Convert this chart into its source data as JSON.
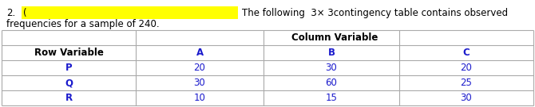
{
  "title_number": "2.",
  "title_text": "The following  3× 3contingency table contains observed",
  "subtitle_text": "frequencies for a sample of 240.",
  "col_header_label": "Column Variable",
  "row_header_label": "Row Variable",
  "col_headers": [
    "A",
    "B",
    "C"
  ],
  "row_headers": [
    "P",
    "Q",
    "R"
  ],
  "table_data": [
    [
      20,
      30,
      20
    ],
    [
      30,
      60,
      25
    ],
    [
      10,
      15,
      30
    ]
  ],
  "text_color_blue": "#1a1acc",
  "text_color_black": "#000000",
  "bg_color": "#ffffff",
  "yellow_box_color": "#ffff00",
  "line_color": "#aaaaaa",
  "font_size": 8.5,
  "bold_font_size": 8.5,
  "fig_width": 6.7,
  "fig_height": 1.35,
  "dpi": 100
}
